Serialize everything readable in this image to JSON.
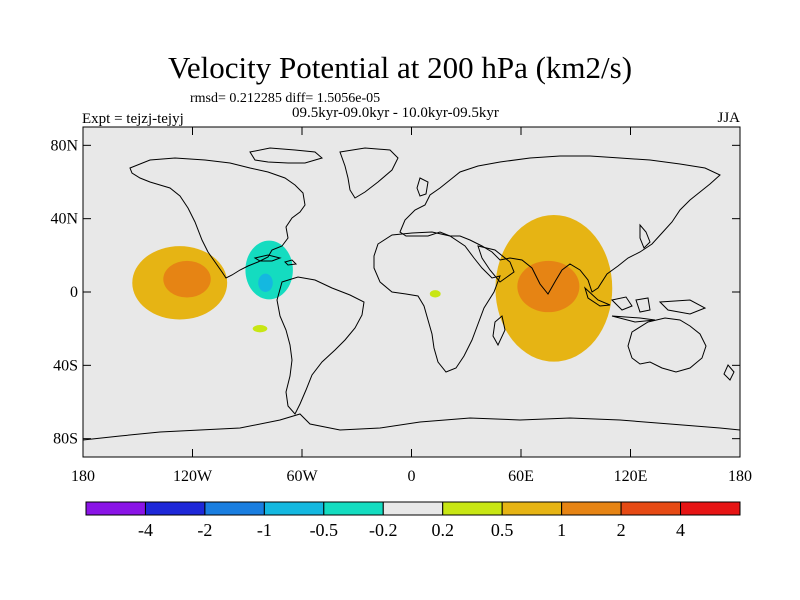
{
  "header": {
    "title": "Velocity Potential at 200 hPa (km2/s)",
    "stats": "rmsd= 0.212285 diff= 1.5056e-05",
    "experiment": "Expt = tejzj-tejyj",
    "period": "09.5kyr-09.0kyr - 10.0kyr-09.5kyr",
    "season": "JJA"
  },
  "chart_data": {
    "type": "heatmap",
    "title": "Velocity Potential at 200 hPa (km2/s)",
    "projection": "cylindrical equidistant (world map)",
    "xlim": [
      -180,
      180
    ],
    "ylim": [
      -90,
      90
    ],
    "x_ticks": [
      {
        "value": -180,
        "label": "180"
      },
      {
        "value": -120,
        "label": "120W"
      },
      {
        "value": -60,
        "label": "60W"
      },
      {
        "value": 0,
        "label": "0"
      },
      {
        "value": 60,
        "label": "60E"
      },
      {
        "value": 120,
        "label": "120E"
      },
      {
        "value": 180,
        "label": "180"
      }
    ],
    "y_ticks": [
      {
        "value": 80,
        "label": "80N"
      },
      {
        "value": 40,
        "label": "40N"
      },
      {
        "value": 0,
        "label": "0"
      },
      {
        "value": -40,
        "label": "40S"
      },
      {
        "value": -80,
        "label": "80S"
      }
    ],
    "colorbar": {
      "levels": [
        -4,
        -2,
        -1,
        -0.5,
        -0.2,
        0.2,
        0.5,
        1,
        2,
        4
      ],
      "labels": [
        "-4",
        "-2",
        "-1",
        "-0.5",
        "-0.2",
        "0.2",
        "0.5",
        "1",
        "2",
        "4"
      ],
      "colors": [
        "#8a14e6",
        "#1e28d8",
        "#1a7ee0",
        "#14b8e0",
        "#14dcc0",
        "#e8e8e8",
        "#c8e614",
        "#e6b414",
        "#e68414",
        "#e64a14",
        "#e61414"
      ]
    },
    "regions": [
      {
        "name": "central-pacific-positive",
        "lon": -127,
        "lat": 5,
        "rlon": 26,
        "rlat": 20,
        "value": 0.5
      },
      {
        "name": "central-pacific-core",
        "lon": -123,
        "lat": 7,
        "rlon": 13,
        "rlat": 10,
        "value": 1
      },
      {
        "name": "east-pacific-patch",
        "lon": -163,
        "lat": -16,
        "rlon": 8,
        "rlat": 4,
        "value": -0.2
      },
      {
        "name": "south-america-patch",
        "lon": -83,
        "lat": -20,
        "rlon": 4,
        "rlat": 2,
        "value": 0.2
      },
      {
        "name": "caribbean-negative",
        "lon": -73,
        "lat": 20,
        "rlon": 21,
        "rlat": 28,
        "value": -0.2
      },
      {
        "name": "caribbean-core",
        "lon": -78,
        "lat": 12,
        "rlon": 13,
        "rlat": 16,
        "value": -0.5
      },
      {
        "name": "caribbean-inner",
        "lon": -80,
        "lat": 5,
        "rlon": 4,
        "rlat": 5,
        "value": -1
      },
      {
        "name": "indian-ocean-positive",
        "lon": 78,
        "lat": 2,
        "rlon": 32,
        "rlat": 40,
        "value": 0.5
      },
      {
        "name": "indian-ocean-core",
        "lon": 75,
        "lat": 3,
        "rlon": 17,
        "rlat": 14,
        "value": 1
      },
      {
        "name": "north-pacific-negative",
        "lon": 163,
        "lat": 30,
        "rlon": 18,
        "rlat": 12,
        "value": -0.2
      },
      {
        "name": "maritime-negative",
        "lon": 140,
        "lat": -4,
        "rlon": 26,
        "rlat": 14,
        "value": -0.2
      },
      {
        "name": "australia-negative",
        "lon": 160,
        "lat": -20,
        "rlon": 18,
        "rlat": 13,
        "value": -0.2
      },
      {
        "name": "west-africa-patch",
        "lon": 13,
        "lat": -1,
        "rlon": 3,
        "rlat": 2,
        "value": 0.2
      }
    ]
  }
}
